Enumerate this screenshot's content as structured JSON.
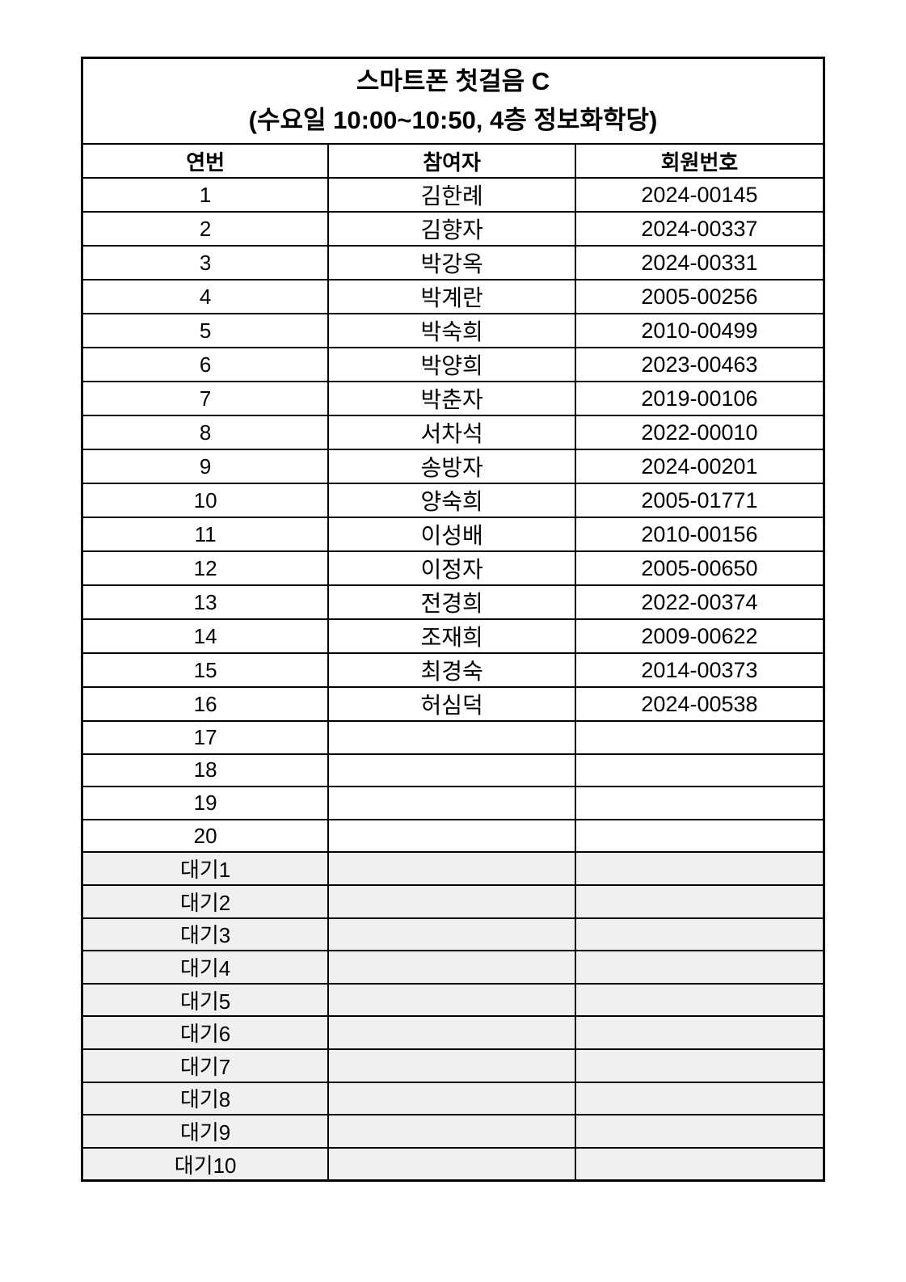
{
  "table": {
    "title_line1": "스마트폰 첫걸음 C",
    "title_line2": "(수요일 10:00~10:50, 4층 정보화학당)",
    "headers": [
      "연번",
      "참여자",
      "회원번호"
    ],
    "colors": {
      "border": "#000000",
      "row_bg": "#ffffff",
      "waiting_row_bg": "#f0f0f0",
      "text": "#000000"
    },
    "rows": [
      {
        "no": "1",
        "name": "김한례",
        "member_no": "2024-00145",
        "waiting": false
      },
      {
        "no": "2",
        "name": "김향자",
        "member_no": "2024-00337",
        "waiting": false
      },
      {
        "no": "3",
        "name": "박강옥",
        "member_no": "2024-00331",
        "waiting": false
      },
      {
        "no": "4",
        "name": "박계란",
        "member_no": "2005-00256",
        "waiting": false
      },
      {
        "no": "5",
        "name": "박숙희",
        "member_no": "2010-00499",
        "waiting": false
      },
      {
        "no": "6",
        "name": "박양희",
        "member_no": "2023-00463",
        "waiting": false
      },
      {
        "no": "7",
        "name": "박춘자",
        "member_no": "2019-00106",
        "waiting": false
      },
      {
        "no": "8",
        "name": "서차석",
        "member_no": "2022-00010",
        "waiting": false
      },
      {
        "no": "9",
        "name": "송방자",
        "member_no": "2024-00201",
        "waiting": false
      },
      {
        "no": "10",
        "name": "양숙희",
        "member_no": "2005-01771",
        "waiting": false
      },
      {
        "no": "11",
        "name": "이성배",
        "member_no": "2010-00156",
        "waiting": false
      },
      {
        "no": "12",
        "name": "이정자",
        "member_no": "2005-00650",
        "waiting": false
      },
      {
        "no": "13",
        "name": "전경희",
        "member_no": "2022-00374",
        "waiting": false
      },
      {
        "no": "14",
        "name": "조재희",
        "member_no": "2009-00622",
        "waiting": false
      },
      {
        "no": "15",
        "name": "최경숙",
        "member_no": "2014-00373",
        "waiting": false
      },
      {
        "no": "16",
        "name": "허심덕",
        "member_no": "2024-00538",
        "waiting": false
      },
      {
        "no": "17",
        "name": "",
        "member_no": "",
        "waiting": false
      },
      {
        "no": "18",
        "name": "",
        "member_no": "",
        "waiting": false
      },
      {
        "no": "19",
        "name": "",
        "member_no": "",
        "waiting": false
      },
      {
        "no": "20",
        "name": "",
        "member_no": "",
        "waiting": false
      },
      {
        "no": "대기1",
        "name": "",
        "member_no": "",
        "waiting": true
      },
      {
        "no": "대기2",
        "name": "",
        "member_no": "",
        "waiting": true
      },
      {
        "no": "대기3",
        "name": "",
        "member_no": "",
        "waiting": true
      },
      {
        "no": "대기4",
        "name": "",
        "member_no": "",
        "waiting": true
      },
      {
        "no": "대기5",
        "name": "",
        "member_no": "",
        "waiting": true
      },
      {
        "no": "대기6",
        "name": "",
        "member_no": "",
        "waiting": true
      },
      {
        "no": "대기7",
        "name": "",
        "member_no": "",
        "waiting": true
      },
      {
        "no": "대기8",
        "name": "",
        "member_no": "",
        "waiting": true
      },
      {
        "no": "대기9",
        "name": "",
        "member_no": "",
        "waiting": true
      },
      {
        "no": "대기10",
        "name": "",
        "member_no": "",
        "waiting": true
      }
    ]
  }
}
